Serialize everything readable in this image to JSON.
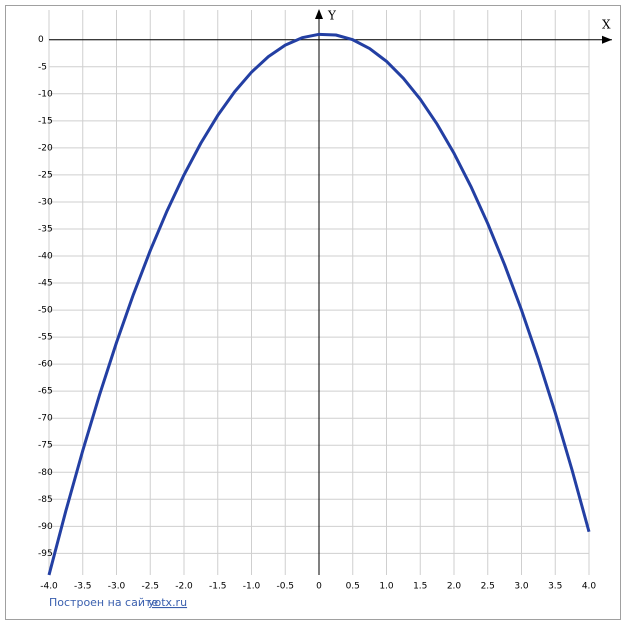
{
  "chart_data": {
    "type": "line",
    "x_axis_label": "X",
    "y_axis_label": "Y",
    "credit": "Построен на сайте",
    "credit_link": "yotx.ru",
    "x": [
      -4,
      -3.75,
      -3.5,
      -3.25,
      -3,
      -2.75,
      -2.5,
      -2.25,
      -2,
      -1.75,
      -1.5,
      -1.25,
      -1,
      -0.75,
      -0.5,
      -0.25,
      0,
      0.25,
      0.5,
      0.75,
      1,
      1.25,
      1.5,
      1.75,
      2,
      2.25,
      2.5,
      2.75,
      3,
      3.25,
      3.5,
      3.75,
      4
    ],
    "series": [
      {
        "color": "#233fa3",
        "values": [
          -99,
          -87.125,
          -76,
          -65.625,
          -56,
          -47.125,
          -39,
          -31.625,
          -25,
          -19.125,
          -14,
          -9.625,
          -6,
          -3.125,
          -1,
          0.375,
          1,
          0.875,
          0,
          -1.625,
          -4,
          -7.125,
          -11,
          -15.625,
          -21,
          -27.125,
          -34,
          -41.625,
          -50,
          -59.125,
          -69,
          -79.625,
          -91
        ]
      }
    ],
    "xlim": [
      -4,
      4
    ],
    "ylim": [
      -99,
      5.5
    ],
    "xticks": [
      {
        "value": -4,
        "label": "-4.0"
      },
      -3.5,
      {
        "value": -3,
        "label": "-3.0"
      },
      -2.5,
      {
        "value": -2,
        "label": "-2.0"
      },
      -1.5,
      {
        "value": -1,
        "label": "-1.0"
      },
      -0.5,
      0,
      0.5,
      {
        "value": 1,
        "label": "1.0"
      },
      1.5,
      {
        "value": 2,
        "label": "2.0"
      },
      2.5,
      {
        "value": 3,
        "label": "3.0"
      },
      3.5,
      {
        "value": 4,
        "label": "4.0"
      }
    ],
    "yticks": [
      0,
      -5,
      -10,
      -15,
      -20,
      -25,
      -30,
      -35,
      -40,
      -45,
      -50,
      -55,
      -60,
      -65,
      -70,
      -75,
      -80,
      -85,
      -90,
      -95
    ],
    "grid": true
  }
}
